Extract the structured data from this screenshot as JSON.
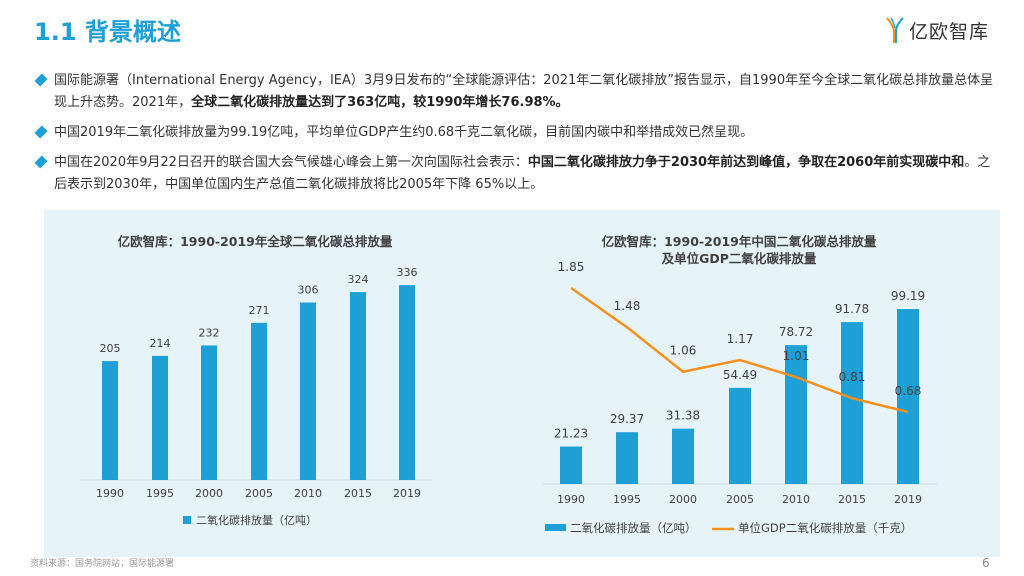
{
  "header": {
    "title": "1.1 背景概述",
    "logo_text": "亿欧智库"
  },
  "bullets": [
    {
      "parts": [
        {
          "t": "国际能源署（International Energy Agency，IEA）3月9日发布的“全球能源评估：2021年二氧化碳排放”报告显示，自1990年至今全球二氧化碳总排放量总体呈现上升态势。2021年，",
          "b": false
        },
        {
          "t": "全球二氧化碳排放量达到了363亿吨，较1990年增长76.98%。",
          "b": true
        }
      ]
    },
    {
      "parts": [
        {
          "t": "中国2019年二氧化碳排放量为99.19亿吨，平均单位GDP产生约0.68千克二氧化碳，目前国内碳中和举措成效已然呈现。",
          "b": false
        }
      ]
    },
    {
      "parts": [
        {
          "t": "中国在2020年9月22日召开的联合国大会气候雄心峰会上第一次向国际社会表示：",
          "b": false
        },
        {
          "t": "中国二氧化碳排放力争于2030年前达到峰值，争取在2060年前实现碳中和",
          "b": true
        },
        {
          "t": "。之后表示到2030年，中国单位国内生产总值二氧化碳排放将比2005年下降 65%以上。",
          "b": false
        }
      ]
    }
  ],
  "chart_data": [
    {
      "type": "bar",
      "title": "亿欧智库：1990-2019年全球二氧化碳总排放量",
      "categories": [
        "1990",
        "1995",
        "2000",
        "2005",
        "2010",
        "2015",
        "2019"
      ],
      "series": [
        {
          "name": "二氧化碳排放量（亿吨）",
          "values": [
            205,
            214,
            232,
            271,
            306,
            324,
            336
          ]
        }
      ],
      "color": "#1e9fd6"
    },
    {
      "type": "bar+line",
      "title": [
        "亿欧智库：1990-2019年中国二氧化碳总排放量",
        "及单位GDP二氧化碳排放量"
      ],
      "categories": [
        "1990",
        "1995",
        "2000",
        "2005",
        "2010",
        "2015",
        "2019"
      ],
      "series": [
        {
          "name": "二氧化碳排放量（亿吨）",
          "type": "bar",
          "values": [
            21.23,
            29.37,
            31.38,
            54.49,
            78.72,
            91.78,
            99.19
          ],
          "color": "#1e9fd6"
        },
        {
          "name": "单位GDP二氧化碳排放量（千克）",
          "type": "line",
          "values": [
            1.85,
            1.48,
            1.06,
            1.17,
            1.01,
            0.81,
            0.68
          ],
          "color": "#f7901e"
        }
      ]
    }
  ],
  "footer": {
    "source": "资料来源：国务院网站，国际能源署",
    "page": "6"
  }
}
